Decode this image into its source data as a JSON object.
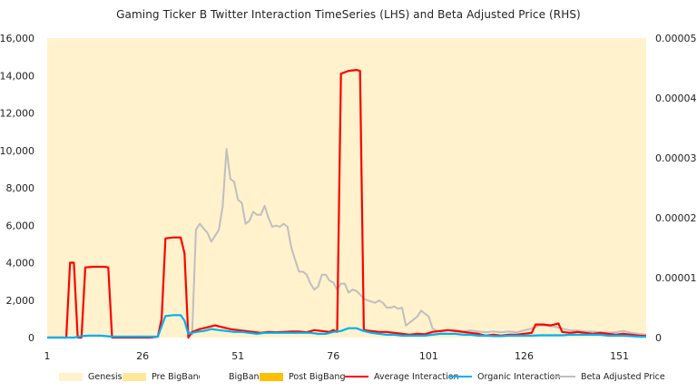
{
  "chart_data": {
    "type": "line",
    "title": "Gaming Ticker B Twitter Interaction TimeSeries (LHS) and Beta Adjusted Price (RHS)",
    "xlabel": "",
    "ylabel_left": "",
    "ylabel_right": "",
    "xlim": [
      1,
      158
    ],
    "ylim_left": [
      0,
      16000
    ],
    "ylim_right": [
      0,
      5e-05
    ],
    "x_ticks": [
      "1",
      "26",
      "51",
      "76",
      "101",
      "126",
      "151"
    ],
    "y_ticks_left": [
      "0",
      "2,000",
      "4,000",
      "6,000",
      "8,000",
      "10,000",
      "12,000",
      "14,000",
      "16,000"
    ],
    "y_ticks_right": [
      "0",
      "0.00001",
      "0.00002",
      "0.00003",
      "0.00004",
      "0.00005"
    ],
    "background_series": [
      {
        "name": "Genesis",
        "color": "#FFF2CC",
        "x_start": 1,
        "x_end": 158
      },
      {
        "name": "Pre BigBang",
        "color": "#FFE699",
        "x_start": 1,
        "x_end": 1
      },
      {
        "name": "BigBang",
        "color": "#FFFFFF",
        "x_start": 1,
        "x_end": 1
      },
      {
        "name": "Post BigBang",
        "color": "#FFC000",
        "x_start": 1,
        "x_end": 1
      }
    ],
    "series": [
      {
        "name": "Average Interaction",
        "axis": "left",
        "color": "#FF0000",
        "points": [
          [
            1,
            0
          ],
          [
            5,
            0
          ],
          [
            6,
            0
          ],
          [
            7,
            4000
          ],
          [
            8,
            4000
          ],
          [
            9,
            0
          ],
          [
            10,
            0
          ],
          [
            11,
            3750
          ],
          [
            13,
            3780
          ],
          [
            16,
            3780
          ],
          [
            17,
            3750
          ],
          [
            18,
            0
          ],
          [
            22,
            0
          ],
          [
            26,
            0
          ],
          [
            28,
            0
          ],
          [
            30,
            50
          ],
          [
            31,
            1000
          ],
          [
            32,
            5300
          ],
          [
            34,
            5350
          ],
          [
            36,
            5350
          ],
          [
            37,
            4500
          ],
          [
            38,
            0
          ],
          [
            39,
            300
          ],
          [
            41,
            450
          ],
          [
            43,
            550
          ],
          [
            45,
            650
          ],
          [
            47,
            550
          ],
          [
            49,
            450
          ],
          [
            51,
            400
          ],
          [
            53,
            350
          ],
          [
            55,
            300
          ],
          [
            57,
            250
          ],
          [
            59,
            300
          ],
          [
            61,
            280
          ],
          [
            63,
            300
          ],
          [
            65,
            320
          ],
          [
            67,
            320
          ],
          [
            69,
            280
          ],
          [
            71,
            400
          ],
          [
            73,
            350
          ],
          [
            75,
            300
          ],
          [
            76,
            400
          ],
          [
            77,
            300
          ],
          [
            78,
            14100
          ],
          [
            80,
            14250
          ],
          [
            82,
            14300
          ],
          [
            83,
            14250
          ],
          [
            84,
            400
          ],
          [
            86,
            350
          ],
          [
            88,
            300
          ],
          [
            90,
            300
          ],
          [
            92,
            250
          ],
          [
            94,
            200
          ],
          [
            96,
            150
          ],
          [
            98,
            200
          ],
          [
            100,
            180
          ],
          [
            102,
            300
          ],
          [
            104,
            350
          ],
          [
            106,
            400
          ],
          [
            108,
            350
          ],
          [
            110,
            300
          ],
          [
            112,
            250
          ],
          [
            114,
            200
          ],
          [
            116,
            100
          ],
          [
            118,
            150
          ],
          [
            120,
            100
          ],
          [
            122,
            150
          ],
          [
            124,
            150
          ],
          [
            126,
            200
          ],
          [
            128,
            250
          ],
          [
            129,
            700
          ],
          [
            131,
            700
          ],
          [
            133,
            650
          ],
          [
            134,
            700
          ],
          [
            135,
            750
          ],
          [
            136,
            300
          ],
          [
            138,
            250
          ],
          [
            140,
            300
          ],
          [
            142,
            250
          ],
          [
            144,
            200
          ],
          [
            146,
            250
          ],
          [
            148,
            200
          ],
          [
            150,
            150
          ],
          [
            152,
            200
          ],
          [
            154,
            150
          ],
          [
            156,
            100
          ],
          [
            158,
            80
          ]
        ]
      },
      {
        "name": "Organic Interaction",
        "axis": "left",
        "color": "#00B0F0",
        "points": [
          [
            1,
            0
          ],
          [
            8,
            0
          ],
          [
            10,
            80
          ],
          [
            12,
            100
          ],
          [
            15,
            100
          ],
          [
            18,
            50
          ],
          [
            22,
            50
          ],
          [
            26,
            50
          ],
          [
            30,
            50
          ],
          [
            31,
            600
          ],
          [
            32,
            1150
          ],
          [
            34,
            1200
          ],
          [
            36,
            1200
          ],
          [
            37,
            900
          ],
          [
            38,
            200
          ],
          [
            40,
            300
          ],
          [
            42,
            350
          ],
          [
            44,
            450
          ],
          [
            46,
            400
          ],
          [
            48,
            350
          ],
          [
            50,
            300
          ],
          [
            52,
            300
          ],
          [
            54,
            250
          ],
          [
            56,
            200
          ],
          [
            58,
            250
          ],
          [
            60,
            250
          ],
          [
            62,
            250
          ],
          [
            64,
            250
          ],
          [
            66,
            250
          ],
          [
            68,
            250
          ],
          [
            70,
            250
          ],
          [
            72,
            200
          ],
          [
            74,
            200
          ],
          [
            76,
            300
          ],
          [
            78,
            350
          ],
          [
            80,
            500
          ],
          [
            82,
            500
          ],
          [
            84,
            350
          ],
          [
            86,
            250
          ],
          [
            88,
            200
          ],
          [
            90,
            150
          ],
          [
            92,
            150
          ],
          [
            94,
            100
          ],
          [
            96,
            100
          ],
          [
            98,
            100
          ],
          [
            100,
            100
          ],
          [
            102,
            150
          ],
          [
            104,
            200
          ],
          [
            106,
            200
          ],
          [
            108,
            200
          ],
          [
            110,
            150
          ],
          [
            112,
            150
          ],
          [
            114,
            100
          ],
          [
            116,
            100
          ],
          [
            118,
            80
          ],
          [
            120,
            80
          ],
          [
            122,
            100
          ],
          [
            124,
            100
          ],
          [
            126,
            100
          ],
          [
            128,
            100
          ],
          [
            130,
            120
          ],
          [
            132,
            120
          ],
          [
            134,
            120
          ],
          [
            136,
            120
          ],
          [
            138,
            150
          ],
          [
            140,
            150
          ],
          [
            142,
            150
          ],
          [
            144,
            150
          ],
          [
            146,
            150
          ],
          [
            148,
            100
          ],
          [
            150,
            100
          ],
          [
            152,
            100
          ],
          [
            154,
            80
          ],
          [
            156,
            50
          ],
          [
            158,
            40
          ]
        ]
      },
      {
        "name": "Beta Adjusted Price",
        "axis": "right",
        "color": "#BFBFBF",
        "points": [
          [
            38,
            1e-06
          ],
          [
            39,
            5e-07
          ],
          [
            40,
            1.8e-05
          ],
          [
            41,
            1.9e-05
          ],
          [
            42,
            1.82e-05
          ],
          [
            43,
            1.75e-05
          ],
          [
            44,
            1.6e-05
          ],
          [
            45,
            1.7e-05
          ],
          [
            46,
            1.8e-05
          ],
          [
            47,
            2.2e-05
          ],
          [
            48,
            3.15e-05
          ],
          [
            49,
            2.65e-05
          ],
          [
            50,
            2.6e-05
          ],
          [
            51,
            2.3e-05
          ],
          [
            52,
            2.25e-05
          ],
          [
            53,
            1.9e-05
          ],
          [
            54,
            1.95e-05
          ],
          [
            55,
            2.1e-05
          ],
          [
            56,
            2.05e-05
          ],
          [
            57,
            2.05e-05
          ],
          [
            58,
            2.2e-05
          ],
          [
            59,
            2e-05
          ],
          [
            60,
            1.85e-05
          ],
          [
            61,
            1.87e-05
          ],
          [
            62,
            1.85e-05
          ],
          [
            63,
            1.9e-05
          ],
          [
            64,
            1.85e-05
          ],
          [
            65,
            1.5e-05
          ],
          [
            66,
            1.3e-05
          ],
          [
            67,
            1.1e-05
          ],
          [
            68,
            1.1e-05
          ],
          [
            69,
            1.05e-05
          ],
          [
            70,
            9e-06
          ],
          [
            71,
            8e-06
          ],
          [
            72,
            8.5e-06
          ],
          [
            73,
            1.05e-05
          ],
          [
            74,
            1.05e-05
          ],
          [
            75,
            9.5e-06
          ],
          [
            76,
            9.2e-06
          ],
          [
            77,
            8e-06
          ],
          [
            78,
            9e-06
          ],
          [
            79,
            9e-06
          ],
          [
            80,
            7.5e-06
          ],
          [
            81,
            8e-06
          ],
          [
            82,
            7.8e-06
          ],
          [
            83,
            7.2e-06
          ],
          [
            84,
            6.5e-06
          ],
          [
            85,
            6.2e-06
          ],
          [
            86,
            6e-06
          ],
          [
            87,
            5.8e-06
          ],
          [
            88,
            6.2e-06
          ],
          [
            89,
            5.8e-06
          ],
          [
            90,
            5e-06
          ],
          [
            91,
            5e-06
          ],
          [
            92,
            5.2e-06
          ],
          [
            93,
            4.8e-06
          ],
          [
            94,
            5e-06
          ],
          [
            95,
            2e-06
          ],
          [
            96,
            2.5e-06
          ],
          [
            97,
            3e-06
          ],
          [
            98,
            3.5e-06
          ],
          [
            99,
            4.5e-06
          ],
          [
            100,
            4e-06
          ],
          [
            101,
            3.5e-06
          ],
          [
            102,
            1.5e-06
          ],
          [
            103,
            1.2e-06
          ],
          [
            104,
            1e-06
          ],
          [
            106,
            1.2e-06
          ],
          [
            108,
            1.3e-06
          ],
          [
            110,
            1e-06
          ],
          [
            112,
            1.2e-06
          ],
          [
            114,
            1e-06
          ],
          [
            116,
            9e-07
          ],
          [
            118,
            1e-06
          ],
          [
            120,
            9e-07
          ],
          [
            122,
            1e-06
          ],
          [
            124,
            9e-07
          ],
          [
            126,
            1.2e-06
          ],
          [
            128,
            1.5e-06
          ],
          [
            130,
            2e-06
          ],
          [
            132,
            2e-06
          ],
          [
            134,
            1.8e-06
          ],
          [
            136,
            1.5e-06
          ],
          [
            138,
            1.2e-06
          ],
          [
            140,
            1.2e-06
          ],
          [
            142,
            1e-06
          ],
          [
            144,
            1e-06
          ],
          [
            146,
            9e-07
          ],
          [
            148,
            8e-07
          ],
          [
            150,
            9e-07
          ],
          [
            152,
            1.1e-06
          ],
          [
            154,
            8e-07
          ],
          [
            156,
            6e-07
          ],
          [
            158,
            5e-07
          ]
        ]
      }
    ],
    "legend": {
      "placement": "bottom",
      "entries": [
        "Genesis",
        "Pre BigBang",
        "BigBang",
        "Post BigBang",
        "Average Interaction",
        "Organic Interaction",
        "Beta Adjusted Price"
      ]
    }
  }
}
